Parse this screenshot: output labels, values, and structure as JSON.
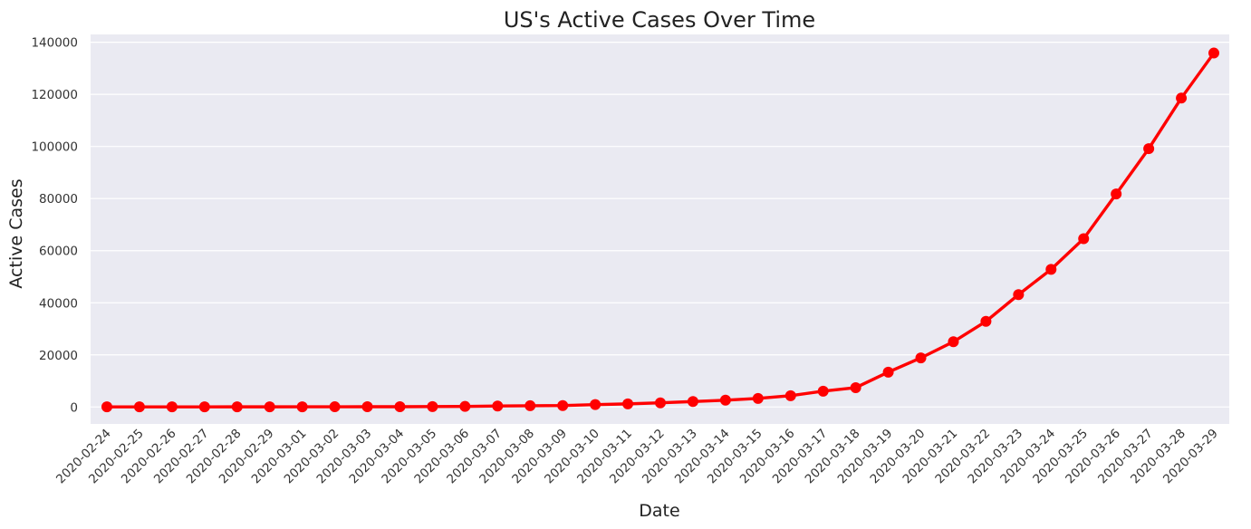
{
  "chart_data": {
    "type": "line",
    "title": "US's Active Cases Over Time",
    "xlabel": "Date",
    "ylabel": "Active Cases",
    "categories": [
      "2020-02-24",
      "2020-02-25",
      "2020-02-26",
      "2020-02-27",
      "2020-02-28",
      "2020-02-29",
      "2020-03-01",
      "2020-03-02",
      "2020-03-03",
      "2020-03-04",
      "2020-03-05",
      "2020-03-06",
      "2020-03-07",
      "2020-03-08",
      "2020-03-09",
      "2020-03-10",
      "2020-03-11",
      "2020-03-12",
      "2020-03-13",
      "2020-03-14",
      "2020-03-15",
      "2020-03-16",
      "2020-03-17",
      "2020-03-18",
      "2020-03-19",
      "2020-03-20",
      "2020-03-21",
      "2020-03-22",
      "2020-03-23",
      "2020-03-24",
      "2020-03-25",
      "2020-03-26",
      "2020-03-27",
      "2020-03-28",
      "2020-03-29"
    ],
    "series": [
      {
        "values": [
          51,
          51,
          57,
          58,
          60,
          62,
          68,
          86,
          102,
          108,
          154,
          216,
          377,
          476,
          555,
          925,
          1194,
          1590,
          2087,
          2611,
          3286,
          4336,
          6061,
          7419,
          13372,
          18854,
          25033,
          32866,
          43129,
          52809,
          64584,
          81761,
          99157,
          118556,
          135852
        ],
        "color": "#ff0000"
      }
    ],
    "ylim": [
      -6500,
      143000
    ],
    "yticks": [
      0,
      20000,
      40000,
      60000,
      80000,
      100000,
      120000,
      140000
    ],
    "grid": true,
    "background": "#eaeaf2",
    "grid_color": "#ffffff"
  }
}
